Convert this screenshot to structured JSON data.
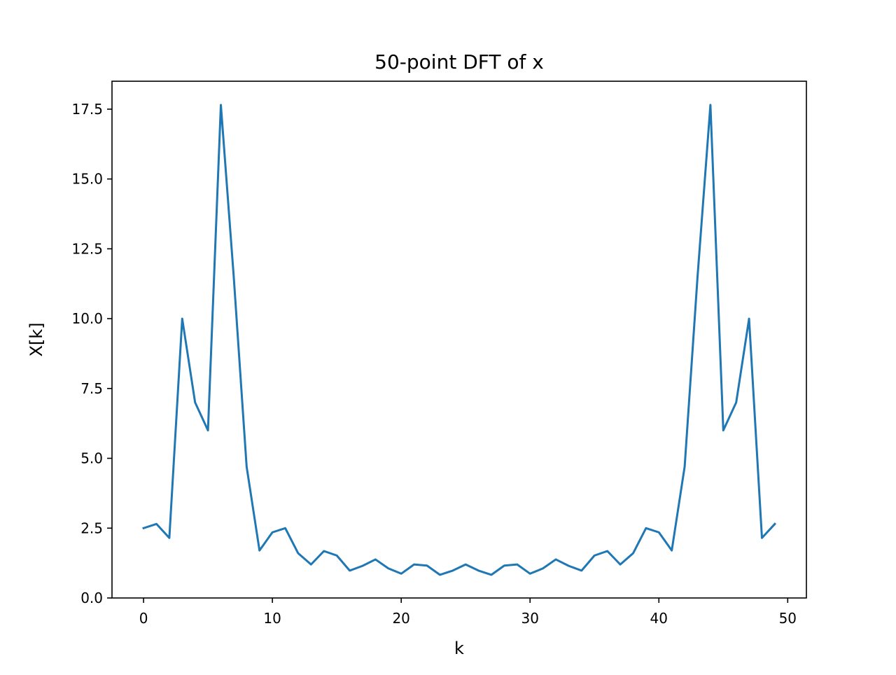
{
  "chart_data": {
    "type": "line",
    "title": "50-point DFT of x",
    "xlabel": "k",
    "ylabel": "X[k]",
    "xlim": [
      -2.45,
      51.45
    ],
    "ylim": [
      0,
      18.5
    ],
    "xticks": [
      0,
      10,
      20,
      30,
      40,
      50
    ],
    "yticks": [
      0.0,
      2.5,
      5.0,
      7.5,
      10.0,
      12.5,
      15.0,
      17.5
    ],
    "grid": false,
    "legend": "none",
    "series": [
      {
        "color": "#1f77b4",
        "x": [
          0,
          1,
          2,
          3,
          4,
          5,
          6,
          7,
          8,
          9,
          10,
          11,
          12,
          13,
          14,
          15,
          16,
          17,
          18,
          19,
          20,
          21,
          22,
          23,
          24,
          25,
          26,
          27,
          28,
          29,
          30,
          31,
          32,
          33,
          34,
          35,
          36,
          37,
          38,
          39,
          40,
          41,
          42,
          43,
          44,
          45,
          46,
          47,
          48,
          49
        ],
        "values": [
          2.5,
          2.65,
          2.15,
          10.0,
          7.0,
          6.0,
          17.65,
          11.5,
          4.7,
          1.7,
          2.35,
          2.5,
          1.6,
          1.2,
          1.68,
          1.52,
          0.98,
          1.15,
          1.38,
          1.06,
          0.87,
          1.2,
          1.16,
          0.83,
          0.98,
          1.2,
          0.98,
          0.83,
          1.16,
          1.2,
          0.87,
          1.06,
          1.38,
          1.15,
          0.98,
          1.52,
          1.68,
          1.2,
          1.6,
          2.5,
          2.35,
          1.7,
          4.7,
          11.5,
          17.65,
          6.0,
          7.0,
          10.0,
          2.15,
          2.65
        ]
      }
    ]
  }
}
